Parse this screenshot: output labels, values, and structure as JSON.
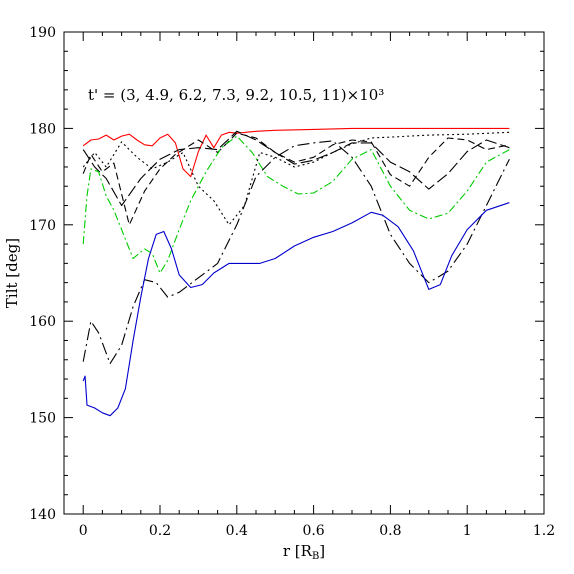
{
  "chart_data": {
    "type": "line",
    "title": "",
    "annotation": "t' = (3, 4.9, 6.2, 7.3, 9.2, 10.5, 11)×10³",
    "xlabel": "r [R",
    "xlabel_sub": "B",
    "xlabel_close": "]",
    "ylabel": "Tilt [deg]",
    "xlim": [
      -0.05,
      1.2
    ],
    "ylim": [
      140,
      190
    ],
    "xticks": [
      0,
      0.2,
      0.4,
      0.6,
      0.8,
      1,
      1.2
    ],
    "xtick_labels": [
      "0",
      "0.2",
      "0.4",
      "0.6",
      "0.8",
      "1",
      "1.2"
    ],
    "yticks": [
      140,
      150,
      160,
      170,
      180,
      190
    ],
    "ytick_labels": [
      "140",
      "150",
      "160",
      "170",
      "180",
      "190"
    ],
    "grid": false,
    "series": [
      {
        "color": "#ff0000",
        "dash": "",
        "x": [
          0,
          0.02,
          0.04,
          0.06,
          0.08,
          0.1,
          0.12,
          0.14,
          0.16,
          0.18,
          0.2,
          0.22,
          0.24,
          0.26,
          0.28,
          0.3,
          0.32,
          0.34,
          0.36,
          0.38,
          0.4,
          0.45,
          0.5,
          0.6,
          0.7,
          0.8,
          0.9,
          1.0,
          1.11
        ],
        "y": [
          178.2,
          178.8,
          178.9,
          179.3,
          178.8,
          179.2,
          179.4,
          178.8,
          178.3,
          178.2,
          179.0,
          179.4,
          178.5,
          175.8,
          175.0,
          177.6,
          179.3,
          178.0,
          179.3,
          179.6,
          179.5,
          179.7,
          179.8,
          179.9,
          180.0,
          180.0,
          180.0,
          180.0,
          180.0
        ]
      },
      {
        "color": "#000000",
        "dash": "2,3",
        "x": [
          0,
          0.03,
          0.06,
          0.1,
          0.14,
          0.18,
          0.22,
          0.26,
          0.3,
          0.34,
          0.38,
          0.42,
          0.46,
          0.5,
          0.55,
          0.6,
          0.65,
          0.7,
          0.75,
          0.8,
          0.9,
          1.0,
          1.11
        ],
        "y": [
          176.0,
          177.5,
          176.0,
          178.6,
          177.0,
          175.8,
          176.5,
          177.5,
          174.0,
          172.5,
          170.0,
          172.0,
          177.5,
          177.0,
          176.0,
          176.5,
          177.5,
          178.4,
          179.0,
          179.1,
          179.3,
          179.4,
          179.6
        ]
      },
      {
        "color": "#000000",
        "dash": "7,4",
        "x": [
          0,
          0.02,
          0.05,
          0.08,
          0.12,
          0.16,
          0.2,
          0.24,
          0.3,
          0.35,
          0.4,
          0.45,
          0.5,
          0.55,
          0.6,
          0.65,
          0.7,
          0.75,
          0.8,
          0.85,
          0.9,
          0.95,
          1.0,
          1.05,
          1.11
        ],
        "y": [
          175.3,
          177.3,
          175.5,
          176.4,
          170.0,
          173.5,
          175.8,
          177.3,
          178.8,
          177.5,
          179.5,
          179.0,
          177.5,
          176.5,
          177.0,
          178.3,
          178.8,
          178.6,
          175.2,
          174.0,
          177.0,
          179.0,
          178.8,
          177.8,
          178.3
        ]
      },
      {
        "color": "#000000",
        "dash": "12,4",
        "x": [
          0,
          0.03,
          0.06,
          0.1,
          0.15,
          0.2,
          0.25,
          0.3,
          0.35,
          0.4,
          0.45,
          0.5,
          0.55,
          0.6,
          0.65,
          0.7,
          0.75,
          0.8,
          0.85,
          0.9,
          0.95,
          1.0,
          1.05,
          1.11
        ],
        "y": [
          177.8,
          176.0,
          174.8,
          172.0,
          174.8,
          176.8,
          177.8,
          178.0,
          177.8,
          179.7,
          178.8,
          177.5,
          176.3,
          176.7,
          177.5,
          178.5,
          178.5,
          176.5,
          175.5,
          173.7,
          175.3,
          177.6,
          178.8,
          178.0
        ]
      },
      {
        "color": "#00cc00",
        "dash": "8,3,2,3",
        "x": [
          0,
          0.01,
          0.02,
          0.04,
          0.06,
          0.08,
          0.1,
          0.13,
          0.16,
          0.18,
          0.2,
          0.22,
          0.25,
          0.28,
          0.32,
          0.36,
          0.4,
          0.44,
          0.48,
          0.52,
          0.56,
          0.6,
          0.65,
          0.7,
          0.75,
          0.8,
          0.85,
          0.9,
          0.95,
          1.0,
          1.05,
          1.11
        ],
        "y": [
          168.0,
          173.0,
          175.8,
          175.5,
          173.0,
          171.5,
          169.5,
          166.5,
          167.5,
          167.0,
          165.0,
          166.3,
          169.5,
          172.5,
          175.5,
          178.0,
          179.2,
          177.5,
          175.0,
          174.0,
          173.2,
          173.3,
          174.5,
          176.8,
          177.8,
          174.0,
          171.5,
          170.6,
          171.2,
          173.5,
          176.5,
          177.8
        ]
      },
      {
        "color": "#000000",
        "dash": "12,4,2,4",
        "x": [
          0,
          0.02,
          0.04,
          0.07,
          0.1,
          0.13,
          0.16,
          0.19,
          0.22,
          0.25,
          0.3,
          0.35,
          0.4,
          0.45,
          0.5,
          0.55,
          0.6,
          0.65,
          0.7,
          0.75,
          0.8,
          0.85,
          0.9,
          0.95,
          1.0,
          1.05,
          1.11
        ],
        "y": [
          155.8,
          160.0,
          158.8,
          155.6,
          157.5,
          161.5,
          164.3,
          164.0,
          162.5,
          163.0,
          164.5,
          166.0,
          170.0,
          175.0,
          177.0,
          178.2,
          178.5,
          178.7,
          177.0,
          174.0,
          169.0,
          166.0,
          164.0,
          165.2,
          168.0,
          172.0,
          176.8
        ]
      },
      {
        "color": "#0000cc",
        "dash": "",
        "x": [
          0,
          0.005,
          0.01,
          0.03,
          0.05,
          0.07,
          0.09,
          0.11,
          0.13,
          0.15,
          0.17,
          0.19,
          0.21,
          0.23,
          0.25,
          0.28,
          0.31,
          0.34,
          0.38,
          0.42,
          0.46,
          0.5,
          0.55,
          0.6,
          0.65,
          0.7,
          0.75,
          0.78,
          0.82,
          0.86,
          0.9,
          0.93,
          0.96,
          1.0,
          1.05,
          1.11
        ],
        "y": [
          153.8,
          154.3,
          151.3,
          151.0,
          150.5,
          150.2,
          151.0,
          153.0,
          158.0,
          162.5,
          166.5,
          169.0,
          169.3,
          167.5,
          164.8,
          163.5,
          163.8,
          165.0,
          166.0,
          166.0,
          166.0,
          166.5,
          167.8,
          168.7,
          169.3,
          170.2,
          171.3,
          171.0,
          169.8,
          167.3,
          163.3,
          163.8,
          166.8,
          169.5,
          171.5,
          172.3
        ]
      }
    ]
  }
}
